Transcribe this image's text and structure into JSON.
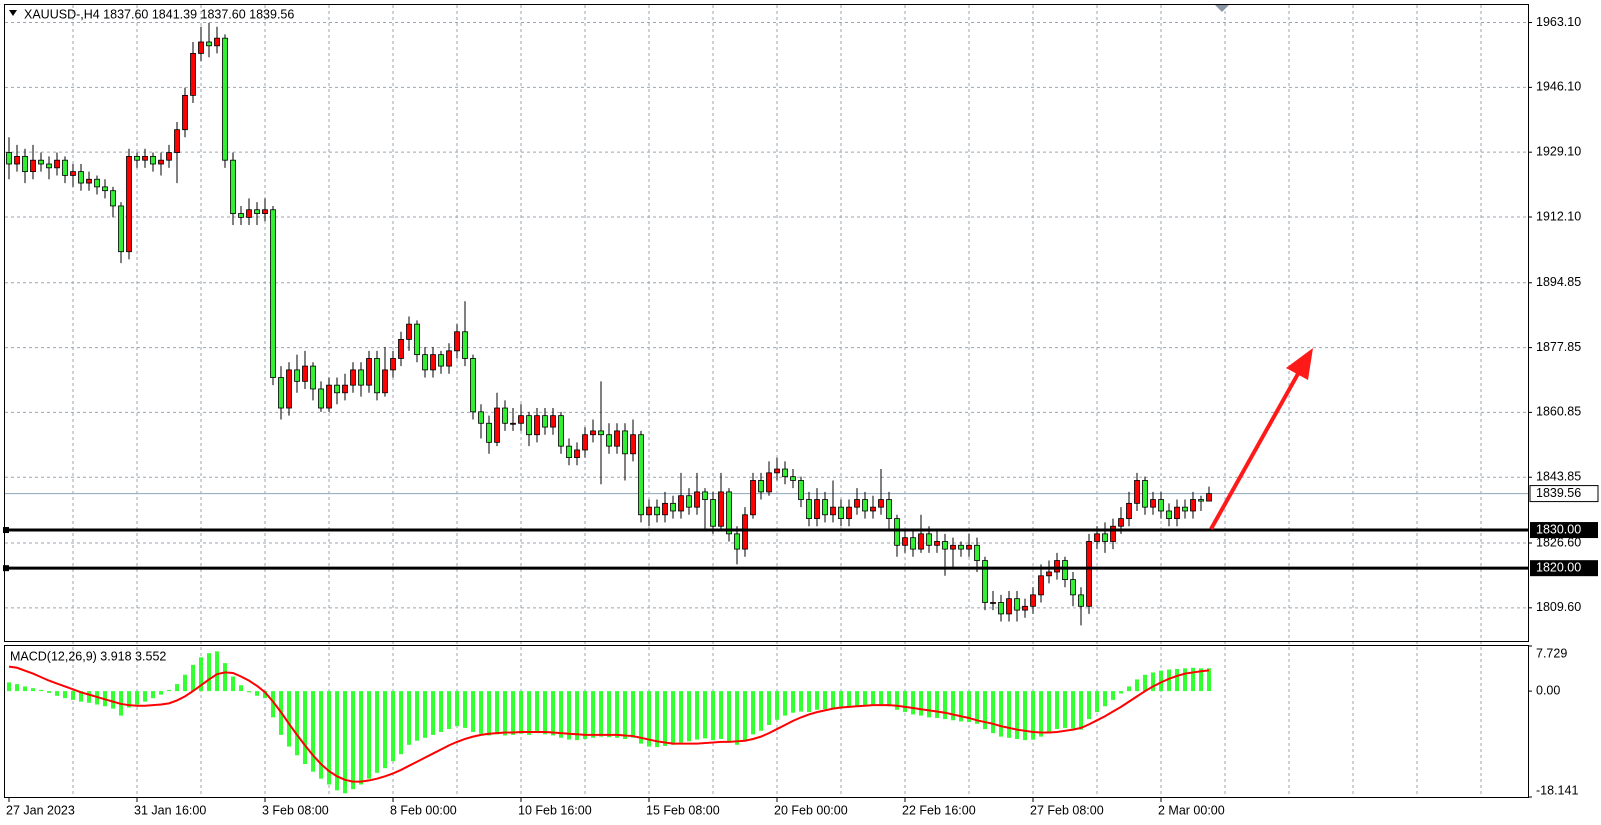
{
  "chart_data": [
    {
      "type": "candlestick",
      "title": "XAUUSD-,H4  1837.60 1841.39 1837.60 1839.56",
      "bull_color": "#ff0000",
      "bear_color": "#33ee33",
      "grid": true,
      "ylim": [
        1800.9,
        1967.7
      ],
      "yticks": [
        {
          "value": 1963.1,
          "label": "1963.10"
        },
        {
          "value": 1946.1,
          "label": "1946.10"
        },
        {
          "value": 1929.1,
          "label": "1929.10"
        },
        {
          "value": 1912.1,
          "label": "1912.10"
        },
        1894.85,
        1877.85,
        1860.85,
        1843.85,
        {
          "value": 1826.6,
          "label": "1826.60"
        },
        {
          "value": 1809.6,
          "label": "1809.60"
        }
      ],
      "hlines": [
        {
          "value": 1830,
          "label": "1830.00"
        },
        {
          "value": 1820,
          "label": "1820.00"
        }
      ],
      "last_price": {
        "value": 1839.56,
        "label": "1839.56"
      },
      "categories": [
        "27 Jan 2023",
        null,
        null,
        null,
        null,
        null,
        null,
        null,
        null,
        null,
        null,
        null,
        null,
        null,
        null,
        null,
        "31 Jan 16:00",
        null,
        null,
        null,
        null,
        null,
        null,
        null,
        null,
        null,
        null,
        null,
        null,
        null,
        null,
        null,
        "3 Feb 08:00",
        null,
        null,
        null,
        null,
        null,
        null,
        null,
        null,
        null,
        null,
        null,
        null,
        null,
        null,
        null,
        "8 Feb 00:00",
        null,
        null,
        null,
        null,
        null,
        null,
        null,
        null,
        null,
        null,
        null,
        null,
        null,
        null,
        null,
        "10 Feb 16:00",
        null,
        null,
        null,
        null,
        null,
        null,
        null,
        null,
        null,
        null,
        null,
        null,
        null,
        null,
        null,
        "15 Feb 08:00",
        null,
        null,
        null,
        null,
        null,
        null,
        null,
        null,
        null,
        null,
        null,
        null,
        null,
        null,
        null,
        "20 Feb 00:00",
        null,
        null,
        null,
        null,
        null,
        null,
        null,
        null,
        null,
        null,
        null,
        null,
        null,
        null,
        null,
        "22 Feb 16:00",
        null,
        null,
        null,
        null,
        null,
        null,
        null,
        null,
        null,
        null,
        null,
        null,
        null,
        null,
        null,
        "27 Feb 08:00",
        null,
        null,
        null,
        null,
        null,
        null,
        null,
        null,
        null,
        null,
        null,
        null,
        null,
        null,
        null,
        "2 Mar 00:00",
        null,
        null,
        null,
        null,
        null,
        null
      ],
      "open": [
        1929,
        1926,
        1928,
        1924,
        1927,
        1926,
        1925,
        1927,
        1923,
        1924,
        1921,
        1922,
        1920,
        1919,
        1915,
        1903,
        1928,
        1927,
        1928,
        1926,
        1927,
        1929,
        1935,
        1944,
        1955,
        1958,
        1957,
        1959,
        1927,
        1913,
        1912,
        1914,
        1913,
        1914,
        1870,
        1862,
        1872,
        1869,
        1873,
        1867,
        1862,
        1868,
        1866,
        1868,
        1872,
        1868,
        1875,
        1866,
        1872,
        1875,
        1880,
        1884,
        1876,
        1872,
        1876,
        1873,
        1877,
        1882,
        1875,
        1861,
        1858,
        1853,
        1862,
        1858,
        1858,
        1860,
        1855,
        1860,
        1857,
        1860,
        1852,
        1849,
        1851,
        1855,
        1856,
        1855,
        1852,
        1856,
        1850,
        1855,
        1834,
        1836,
        1834,
        1837,
        1835,
        1839,
        1836,
        1840,
        1838,
        1831,
        1840,
        1829,
        1825,
        1834,
        1843,
        1840,
        1845,
        1846,
        1844,
        1843,
        1838,
        1833,
        1838,
        1834,
        1836,
        1833,
        1836,
        1838,
        1835,
        1836,
        1838,
        1833,
        1826,
        1828,
        1825,
        1829,
        1826,
        1827,
        1825,
        1826,
        1825,
        1826,
        1822,
        1811,
        1811,
        1808,
        1812,
        1809,
        1810,
        1813,
        1818,
        1819,
        1822,
        1817,
        1813,
        1810,
        1827,
        1829,
        1827,
        1831,
        1833,
        1837,
        1843,
        1836,
        1838,
        1835,
        1833,
        1836,
        1835,
        1838,
        1837.6
      ],
      "high": [
        1933,
        1931,
        1930,
        1931,
        1929,
        1928,
        1929,
        1928,
        1926,
        1926,
        1924,
        1923,
        1922,
        1920,
        1916,
        1930,
        1929,
        1930,
        1929,
        1929,
        1931,
        1937,
        1946,
        1958,
        1962,
        1963,
        1962,
        1960,
        1929,
        1915,
        1917,
        1916,
        1917,
        1915,
        1873,
        1874,
        1876,
        1877,
        1874,
        1869,
        1870,
        1870,
        1871,
        1874,
        1874,
        1877,
        1877,
        1878,
        1877,
        1882,
        1886,
        1885,
        1878,
        1878,
        1877,
        1879,
        1884,
        1890,
        1876,
        1863,
        1860,
        1866,
        1864,
        1862,
        1863,
        1861,
        1862,
        1862,
        1862,
        1861,
        1854,
        1853,
        1857,
        1859,
        1869,
        1858,
        1858,
        1858,
        1859,
        1856,
        1838,
        1838,
        1840,
        1839,
        1845,
        1841,
        1845,
        1841,
        1840,
        1845,
        1841,
        1831,
        1836,
        1845,
        1845,
        1848,
        1849,
        1848,
        1846,
        1844,
        1840,
        1841,
        1840,
        1843,
        1838,
        1838,
        1841,
        1840,
        1839,
        1846,
        1840,
        1834,
        1830,
        1830,
        1834,
        1831,
        1830,
        1829,
        1828,
        1827,
        1829,
        1828,
        1823,
        1814,
        1813,
        1814,
        1814,
        1812,
        1815,
        1821,
        1822,
        1824,
        1823,
        1819,
        1815,
        1829,
        1831,
        1832,
        1833,
        1836,
        1840,
        1845,
        1844,
        1840,
        1840,
        1837,
        1838,
        1838,
        1840,
        1839,
        1841.39
      ],
      "low": [
        1922,
        1924,
        1921,
        1922,
        1924,
        1922,
        1923,
        1921,
        1920,
        1919,
        1919,
        1918,
        1917,
        1912,
        1900,
        1901,
        1925,
        1925,
        1924,
        1923,
        1925,
        1921,
        1933,
        1942,
        1953,
        1954,
        1955,
        1925,
        1910,
        1910,
        1910,
        1910,
        1911,
        1868,
        1859,
        1860,
        1866,
        1867,
        1864,
        1861,
        1861,
        1863,
        1864,
        1866,
        1865,
        1866,
        1864,
        1865,
        1870,
        1873,
        1877,
        1874,
        1870,
        1870,
        1871,
        1871,
        1875,
        1873,
        1859,
        1854,
        1850,
        1852,
        1856,
        1856,
        1856,
        1852,
        1853,
        1855,
        1855,
        1850,
        1847,
        1847,
        1849,
        1853,
        1842,
        1850,
        1850,
        1843,
        1848,
        1832,
        1831,
        1832,
        1832,
        1833,
        1833,
        1834,
        1834,
        1830,
        1829,
        1830,
        1827,
        1821,
        1823,
        1833,
        1838,
        1839,
        1843,
        1842,
        1841,
        1836,
        1831,
        1831,
        1832,
        1832,
        1831,
        1831,
        1834,
        1833,
        1833,
        1834,
        1830,
        1823,
        1824,
        1823,
        1824,
        1824,
        1824,
        1818,
        1820,
        1823,
        1823,
        1819,
        1809,
        1809,
        1806,
        1806,
        1806,
        1807,
        1808,
        1811,
        1816,
        1817,
        1815,
        1810,
        1805,
        1808,
        1825,
        1824,
        1825,
        1829,
        1831,
        1835,
        1834,
        1834,
        1833,
        1831,
        1831,
        1833,
        1833,
        1835,
        1837.6
      ],
      "close": [
        1926,
        1928,
        1924,
        1927,
        1926,
        1925,
        1927,
        1923,
        1924,
        1921,
        1922,
        1920,
        1919,
        1915,
        1903,
        1928,
        1927,
        1928,
        1926,
        1927,
        1929,
        1935,
        1944,
        1955,
        1958,
        1957,
        1959,
        1927,
        1913,
        1912,
        1914,
        1913,
        1914,
        1870,
        1862,
        1872,
        1869,
        1873,
        1867,
        1862,
        1868,
        1866,
        1868,
        1872,
        1868,
        1875,
        1866,
        1872,
        1875,
        1880,
        1884,
        1876,
        1872,
        1876,
        1873,
        1877,
        1882,
        1875,
        1861,
        1858,
        1853,
        1862,
        1858,
        1858,
        1860,
        1855,
        1860,
        1857,
        1860,
        1852,
        1849,
        1851,
        1855,
        1856,
        1855,
        1852,
        1856,
        1850,
        1855,
        1834,
        1836,
        1834,
        1837,
        1835,
        1839,
        1836,
        1840,
        1838,
        1831,
        1840,
        1829,
        1825,
        1834,
        1843,
        1840,
        1845,
        1846,
        1844,
        1843,
        1838,
        1833,
        1838,
        1834,
        1836,
        1833,
        1836,
        1838,
        1835,
        1836,
        1838,
        1833,
        1826,
        1828,
        1825,
        1829,
        1826,
        1827,
        1825,
        1826,
        1825,
        1826,
        1822,
        1811,
        1811,
        1808,
        1812,
        1809,
        1810,
        1813,
        1818,
        1819,
        1822,
        1817,
        1813,
        1810,
        1827,
        1829,
        1827,
        1831,
        1833,
        1837,
        1843,
        1836,
        1838,
        1835,
        1833,
        1836,
        1835,
        1838,
        1837.6,
        1839.56
      ]
    },
    {
      "type": "macd",
      "title": "MACD(12,26,9) 3.918 3.552",
      "ylim": [
        -18.141,
        7.729
      ],
      "yticks": [
        7.729,
        {
          "value": 0,
          "label": "0.00"
        },
        -18.141
      ],
      "histogram": {
        "color": "#33ff33",
        "values": [
          1.5,
          1.2,
          0.8,
          0.5,
          0.2,
          -0.3,
          -0.8,
          -1.2,
          -1.5,
          -1.8,
          -2,
          -2.3,
          -2.6,
          -3,
          -4.2,
          -2.8,
          -2.3,
          -1.8,
          -1.2,
          -0.6,
          0.2,
          1.2,
          2.8,
          4.5,
          5.8,
          6.5,
          6.8,
          4.8,
          2.5,
          1,
          -0.2,
          -0.8,
          -1.2,
          -4.5,
          -7.5,
          -9.5,
          -11,
          -12.5,
          -13.8,
          -15,
          -16,
          -17,
          -17.5,
          -16.8,
          -16,
          -15,
          -14,
          -13.2,
          -12,
          -10.8,
          -9.2,
          -8.5,
          -8,
          -7.5,
          -7,
          -6.5,
          -6,
          -6.3,
          -7,
          -7.3,
          -7.6,
          -7.4,
          -7.6,
          -7.5,
          -7.3,
          -7.5,
          -7.2,
          -7.4,
          -7.6,
          -8,
          -8.3,
          -8.4,
          -8.2,
          -8,
          -7.8,
          -7.9,
          -8,
          -8.2,
          -8,
          -9,
          -9.5,
          -9.6,
          -9.4,
          -9.2,
          -8.8,
          -8.6,
          -8.3,
          -8.1,
          -8.4,
          -8.2,
          -8.8,
          -9.2,
          -8.6,
          -7.4,
          -6.8,
          -5.8,
          -4.9,
          -4.2,
          -3.7,
          -3.5,
          -3.6,
          -3.2,
          -3.1,
          -3,
          -3,
          -2.8,
          -2.6,
          -2.6,
          -2.5,
          -2.3,
          -2.6,
          -3.2,
          -3.6,
          -4,
          -4.2,
          -4.5,
          -4.6,
          -4.8,
          -5,
          -5.2,
          -5.3,
          -5.6,
          -6.5,
          -7.2,
          -7.8,
          -8,
          -8.2,
          -8.4,
          -8.3,
          -7.8,
          -7.2,
          -6.5,
          -6.3,
          -6.4,
          -6.6,
          -4.8,
          -3.6,
          -2.6,
          -1.5,
          -0.4,
          0.8,
          2,
          2.8,
          3.2,
          3.5,
          3.7,
          3.8,
          3.9,
          4,
          3.9,
          3.918
        ]
      },
      "signal": {
        "color": "#ff0000",
        "values": [
          4.2,
          4,
          3.5,
          3,
          2.4,
          1.8,
          1.3,
          0.8,
          0.3,
          -0.2,
          -0.6,
          -1,
          -1.4,
          -1.8,
          -2.2,
          -2.4,
          -2.5,
          -2.5,
          -2.4,
          -2.3,
          -2.1,
          -1.6,
          -0.9,
          0,
          1,
          2,
          2.9,
          3.2,
          3.1,
          2.5,
          1.8,
          0.9,
          -0.2,
          -1.8,
          -3.6,
          -5.6,
          -7.5,
          -9.3,
          -11,
          -12.5,
          -13.7,
          -14.6,
          -15.2,
          -15.5,
          -15.5,
          -15.3,
          -15,
          -14.6,
          -14.1,
          -13.5,
          -12.8,
          -12.1,
          -11.4,
          -10.7,
          -10,
          -9.3,
          -8.7,
          -8.2,
          -7.8,
          -7.5,
          -7.3,
          -7.2,
          -7.1,
          -7.1,
          -7,
          -7,
          -7,
          -7,
          -7.1,
          -7.2,
          -7.3,
          -7.4,
          -7.5,
          -7.5,
          -7.5,
          -7.5,
          -7.5,
          -7.6,
          -7.7,
          -8,
          -8.3,
          -8.6,
          -8.8,
          -9,
          -9,
          -9,
          -9,
          -8.9,
          -8.8,
          -8.7,
          -8.7,
          -8.6,
          -8.5,
          -8.2,
          -7.8,
          -7.2,
          -6.5,
          -5.8,
          -5.1,
          -4.5,
          -4,
          -3.6,
          -3.3,
          -3,
          -2.8,
          -2.7,
          -2.6,
          -2.5,
          -2.4,
          -2.4,
          -2.4,
          -2.5,
          -2.7,
          -2.9,
          -3.1,
          -3.3,
          -3.5,
          -3.7,
          -4,
          -4.3,
          -4.6,
          -5,
          -5.3,
          -5.6,
          -6,
          -6.3,
          -6.6,
          -6.8,
          -7,
          -7.1,
          -7.1,
          -7,
          -6.8,
          -6.6,
          -6.3,
          -5.7,
          -5,
          -4.3,
          -3.5,
          -2.7,
          -1.8,
          -0.9,
          0,
          0.8,
          1.5,
          2.1,
          2.6,
          3,
          3.2,
          3.4,
          3.552
        ]
      }
    }
  ]
}
